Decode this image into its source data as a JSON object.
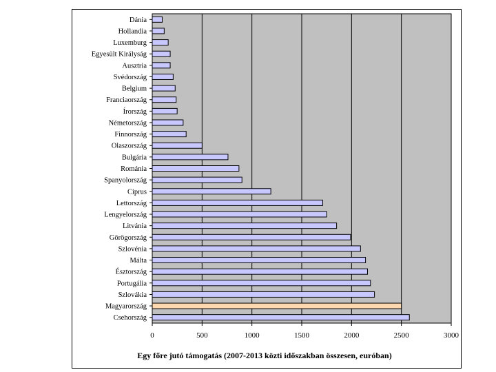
{
  "chart_data": {
    "type": "bar",
    "orientation": "horizontal",
    "categories": [
      "Dánia",
      "Hollandia",
      "Luxemburg",
      "Egyesült Királyság",
      "Ausztria",
      "Svédország",
      "Belgium",
      "Franciaország",
      "Írország",
      "Németország",
      "Finnország",
      "Olaszország",
      "Bulgária",
      "Románia",
      "Spanyolország",
      "Ciprus",
      "Lettország",
      "Lengyelország",
      "Litvánia",
      "Görögország",
      "Szlovénia",
      "Málta",
      "Észtország",
      "Portugália",
      "Szlovákia",
      "Magyarország",
      "Csehország"
    ],
    "values": [
      100,
      120,
      160,
      180,
      180,
      210,
      230,
      240,
      250,
      310,
      340,
      500,
      760,
      870,
      900,
      1190,
      1710,
      1750,
      1850,
      1990,
      2090,
      2140,
      2160,
      2190,
      2230,
      2500,
      2580
    ],
    "highlight": "Magyarország",
    "colors": {
      "bar": "#c8c8ff",
      "highlight": "#ffd8b0",
      "plot_bg": "#c0c0c0",
      "grid": "#000000"
    },
    "xlim": [
      0,
      3000
    ],
    "xticks": [
      0,
      500,
      1000,
      1500,
      2000,
      2500,
      3000
    ],
    "xlabel": "Egy főre jutó támogatás (2007-2013 közti időszakban összesen, euróban)",
    "title": "",
    "grid": true
  }
}
